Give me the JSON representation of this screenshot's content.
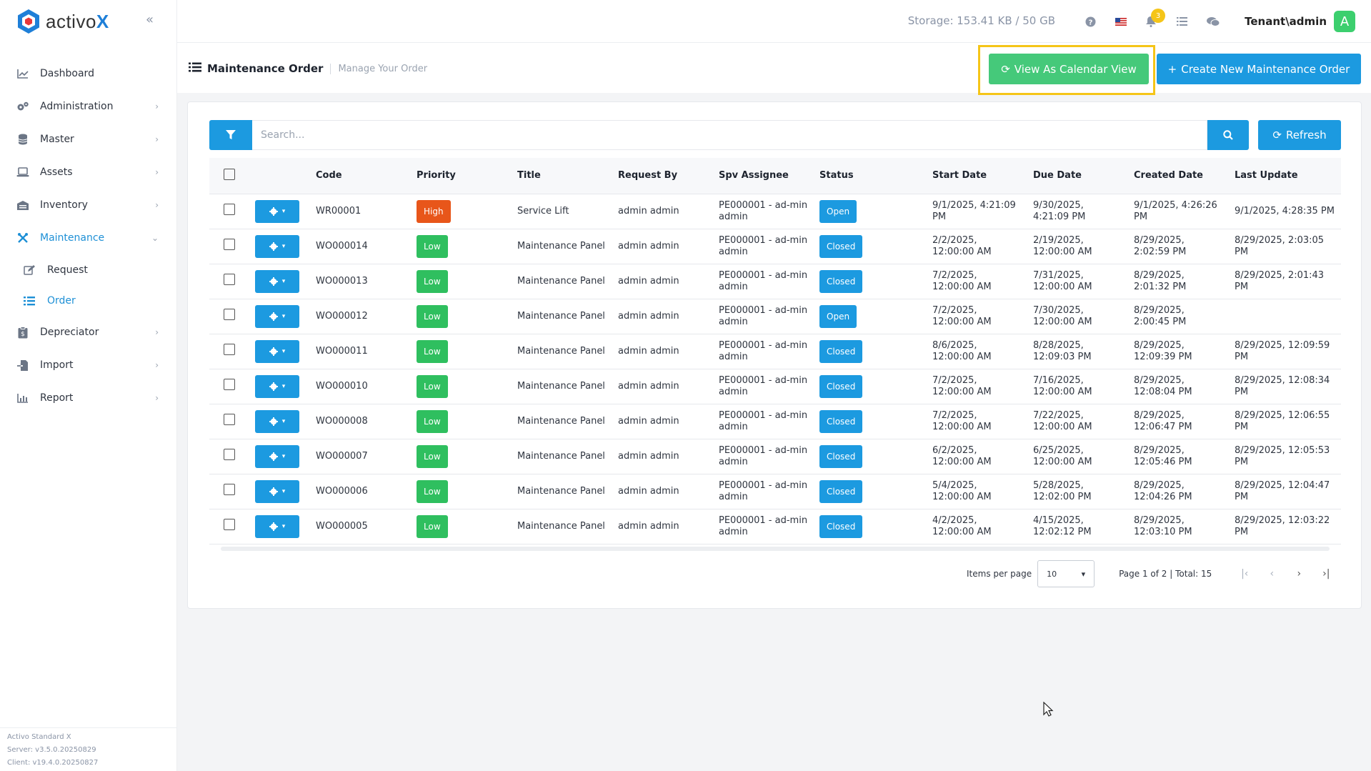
{
  "app": {
    "logo_text_a": "activo",
    "logo_text_b": "X",
    "brand_color": "#1e7fd8"
  },
  "sidebar": {
    "items": [
      {
        "label": "Dashboard",
        "icon": "chart-icon",
        "chevron": false,
        "active": false
      },
      {
        "label": "Administration",
        "icon": "gears-icon",
        "chevron": true,
        "active": false
      },
      {
        "label": "Master",
        "icon": "database-icon",
        "chevron": true,
        "active": false
      },
      {
        "label": "Assets",
        "icon": "laptop-icon",
        "chevron": true,
        "active": false
      },
      {
        "label": "Inventory",
        "icon": "warehouse-icon",
        "chevron": true,
        "active": false
      },
      {
        "label": "Maintenance",
        "icon": "tools-icon",
        "chevron": true,
        "active": true
      }
    ],
    "subitems": [
      {
        "label": "Request",
        "icon": "edit-icon",
        "active": false
      },
      {
        "label": "Order",
        "icon": "list-icon",
        "active": true
      }
    ],
    "items_after": [
      {
        "label": "Depreciator",
        "icon": "clipboard-dollar-icon"
      },
      {
        "label": "Import",
        "icon": "file-import-icon"
      },
      {
        "label": "Report",
        "icon": "bar-chart-icon"
      }
    ],
    "version_lines": [
      "Activo Standard X",
      "Server: v3.5.0.20250829",
      "Client: v19.4.0.20250827"
    ]
  },
  "header": {
    "storage": "Storage: 153.41 KB / 50 GB",
    "notification_count": "3",
    "user": "Tenant\\admin",
    "avatar_letter": "A"
  },
  "page": {
    "title": "Maintenance Order",
    "subtitle": "Manage Your Order",
    "calendar_button": "View As Calendar View",
    "create_button": "Create New Maintenance Order"
  },
  "toolbar": {
    "search_placeholder": "Search...",
    "refresh_label": "Refresh"
  },
  "table": {
    "columns": [
      "Code",
      "Priority",
      "Title",
      "Request By",
      "Spv Assignee",
      "Status",
      "Start Date",
      "Due Date",
      "Created Date",
      "Last Update"
    ],
    "rows": [
      {
        "code": "WR00001",
        "priority": "High",
        "title": "Service Lift",
        "request_by": "admin admin",
        "spv": "PE000001 - ad-min admin",
        "status": "Open",
        "start": "9/1/2025, 4:21:09 PM",
        "due": "9/30/2025, 4:21:09 PM",
        "created": "9/1/2025, 4:26:26 PM",
        "updated": "9/1/2025, 4:28:35 PM"
      },
      {
        "code": "WO000014",
        "priority": "Low",
        "title": "Maintenance Panel",
        "request_by": "admin admin",
        "spv": "PE000001 - ad-min admin",
        "status": "Closed",
        "start": "2/2/2025, 12:00:00 AM",
        "due": "2/19/2025, 12:00:00 AM",
        "created": "8/29/2025, 2:02:59 PM",
        "updated": "8/29/2025, 2:03:05 PM"
      },
      {
        "code": "WO000013",
        "priority": "Low",
        "title": "Maintenance Panel",
        "request_by": "admin admin",
        "spv": "PE000001 - ad-min admin",
        "status": "Closed",
        "start": "7/2/2025, 12:00:00 AM",
        "due": "7/31/2025, 12:00:00 AM",
        "created": "8/29/2025, 2:01:32 PM",
        "updated": "8/29/2025, 2:01:43 PM"
      },
      {
        "code": "WO000012",
        "priority": "Low",
        "title": "Maintenance Panel",
        "request_by": "admin admin",
        "spv": "PE000001 - ad-min admin",
        "status": "Open",
        "start": "7/2/2025, 12:00:00 AM",
        "due": "7/30/2025, 12:00:00 AM",
        "created": "8/29/2025, 2:00:45 PM",
        "updated": ""
      },
      {
        "code": "WO000011",
        "priority": "Low",
        "title": "Maintenance Panel",
        "request_by": "admin admin",
        "spv": "PE000001 - ad-min admin",
        "status": "Closed",
        "start": "8/6/2025, 12:00:00 AM",
        "due": "8/28/2025, 12:09:03 PM",
        "created": "8/29/2025, 12:09:39 PM",
        "updated": "8/29/2025, 12:09:59 PM"
      },
      {
        "code": "WO000010",
        "priority": "Low",
        "title": "Maintenance Panel",
        "request_by": "admin admin",
        "spv": "PE000001 - ad-min admin",
        "status": "Closed",
        "start": "7/2/2025, 12:00:00 AM",
        "due": "7/16/2025, 12:00:00 AM",
        "created": "8/29/2025, 12:08:04 PM",
        "updated": "8/29/2025, 12:08:34 PM"
      },
      {
        "code": "WO000008",
        "priority": "Low",
        "title": "Maintenance Panel",
        "request_by": "admin admin",
        "spv": "PE000001 - ad-min admin",
        "status": "Closed",
        "start": "7/2/2025, 12:00:00 AM",
        "due": "7/22/2025, 12:00:00 AM",
        "created": "8/29/2025, 12:06:47 PM",
        "updated": "8/29/2025, 12:06:55 PM"
      },
      {
        "code": "WO000007",
        "priority": "Low",
        "title": "Maintenance Panel",
        "request_by": "admin admin",
        "spv": "PE000001 - ad-min admin",
        "status": "Closed",
        "start": "6/2/2025, 12:00:00 AM",
        "due": "6/25/2025, 12:00:00 AM",
        "created": "8/29/2025, 12:05:46 PM",
        "updated": "8/29/2025, 12:05:53 PM"
      },
      {
        "code": "WO000006",
        "priority": "Low",
        "title": "Maintenance Panel",
        "request_by": "admin admin",
        "spv": "PE000001 - ad-min admin",
        "status": "Closed",
        "start": "5/4/2025, 12:00:00 AM",
        "due": "5/28/2025, 12:02:00 PM",
        "created": "8/29/2025, 12:04:26 PM",
        "updated": "8/29/2025, 12:04:47 PM"
      },
      {
        "code": "WO000005",
        "priority": "Low",
        "title": "Maintenance Panel",
        "request_by": "admin admin",
        "spv": "PE000001 - ad-min admin",
        "status": "Closed",
        "start": "4/2/2025, 12:00:00 AM",
        "due": "4/15/2025, 12:02:12 PM",
        "created": "8/29/2025, 12:03:10 PM",
        "updated": "8/29/2025, 12:03:22 PM"
      }
    ]
  },
  "pagination": {
    "items_per_page_label": "Items per page",
    "items_per_page_value": "10",
    "page_info": "Page 1 of 2 | Total: 15"
  },
  "colors": {
    "primary": "#1c9ae0",
    "success": "#45c97a",
    "high": "#e8561a",
    "low": "#2fbf5f",
    "highlight": "#f5c518"
  }
}
